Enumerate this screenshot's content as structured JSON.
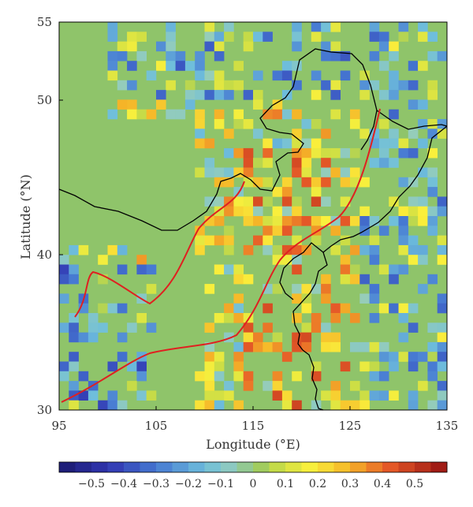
{
  "map": {
    "xlabel": "Longitude (°E)",
    "ylabel": "Latitude (°N)",
    "x_ticks": [
      "95",
      "105",
      "115",
      "125",
      "135"
    ],
    "y_ticks": [
      "30",
      "40",
      "50",
      "55"
    ],
    "lon_range": [
      95,
      135
    ],
    "lat_range": [
      30,
      55
    ],
    "background_color": "#8fc46a",
    "coastline_color": "#000000",
    "curve_color": "#e02020"
  },
  "colorbar": {
    "labels": [
      "−0.5",
      "−0.4",
      "−0.3",
      "−0.2",
      "−0.1",
      "0",
      "0.1",
      "0.2",
      "0.3",
      "0.4",
      "0.5"
    ],
    "range": [
      -0.6,
      0.6
    ]
  }
}
